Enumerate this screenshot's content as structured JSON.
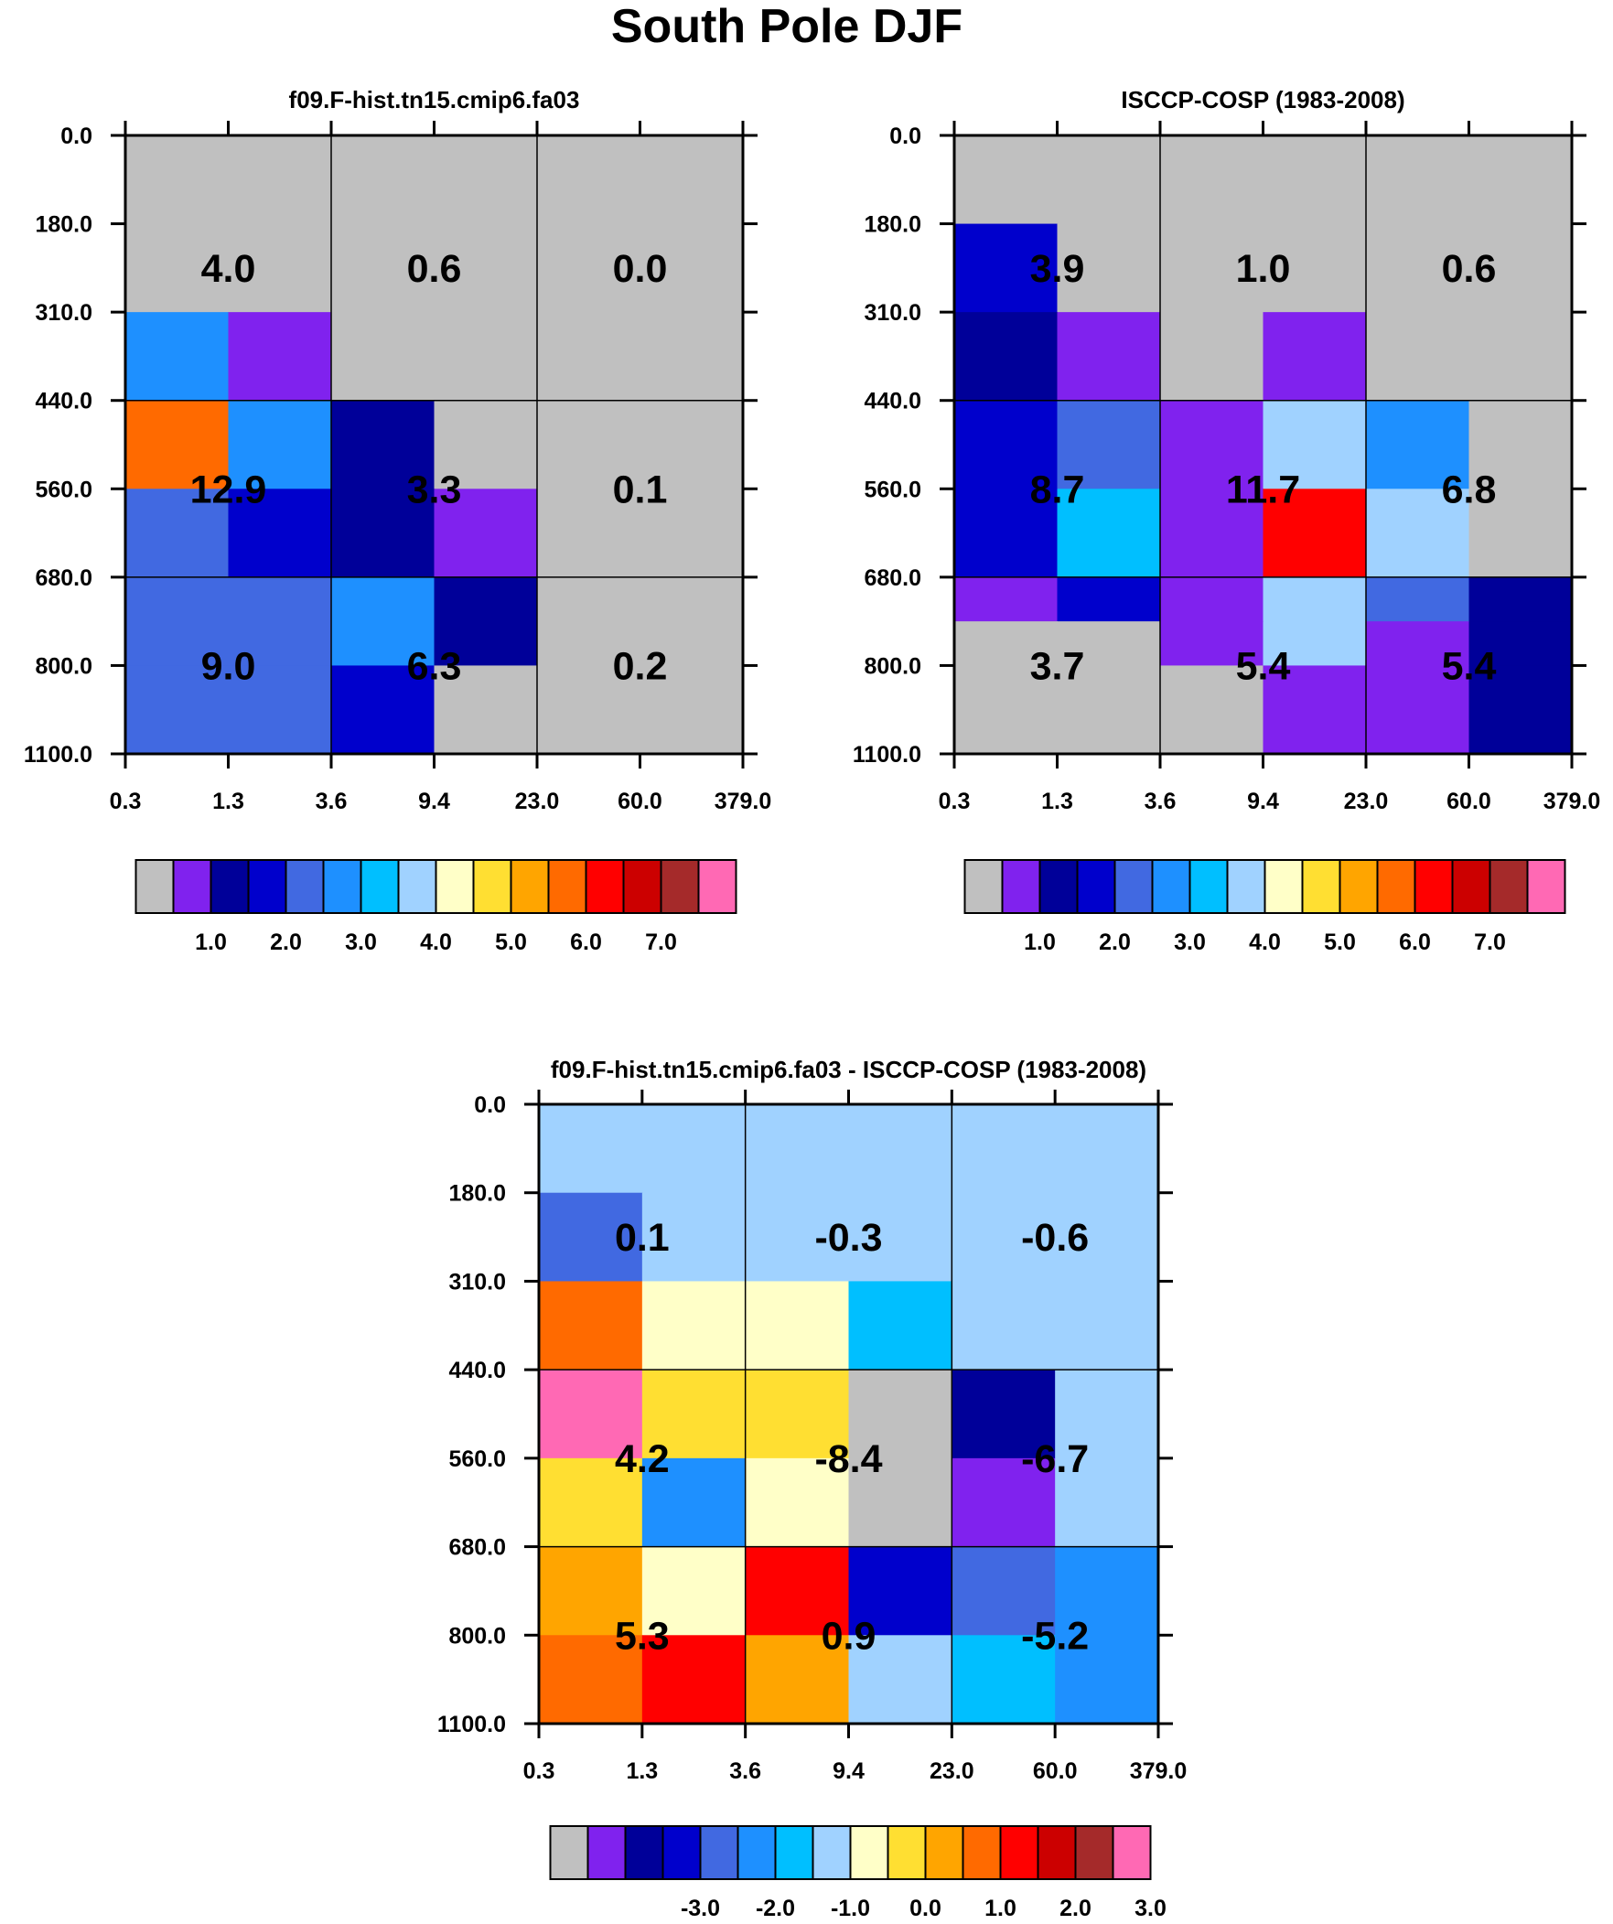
{
  "title": "South Pole DJF",
  "chart_data": [
    {
      "type": "heatmap",
      "title": "f09.F-hist.tn15.cmip6.fa03",
      "x_ticks": [
        "0.3",
        "1.3",
        "3.6",
        "9.4",
        "23.0",
        "60.0",
        "379.0"
      ],
      "y_ticks": [
        "0.0",
        "180.0",
        "310.0",
        "440.0",
        "560.0",
        "680.0",
        "800.0",
        "1100.0"
      ],
      "cells": [
        [
          0,
          0,
          0,
          0,
          0,
          0
        ],
        [
          5,
          1,
          0,
          0,
          0,
          0
        ],
        [
          11,
          5,
          2,
          0,
          0,
          0
        ],
        [
          4,
          3,
          2,
          1,
          0,
          0
        ],
        [
          4,
          4,
          5,
          2,
          0,
          0
        ],
        [
          4,
          4,
          3,
          0,
          0,
          0
        ]
      ],
      "group_values": [
        [
          "4.0",
          "0.6",
          "0.0"
        ],
        [
          "12.9",
          "3.3",
          "0.1"
        ],
        [
          "9.0",
          "6.3",
          "0.2"
        ]
      ],
      "colorbar_labels": [
        "1.0",
        "2.0",
        "3.0",
        "4.0",
        "5.0",
        "6.0",
        "7.0"
      ]
    },
    {
      "type": "heatmap",
      "title": "ISCCP-COSP (1983-2008)",
      "x_ticks": [
        "0.3",
        "1.3",
        "3.6",
        "9.4",
        "23.0",
        "60.0",
        "379.0"
      ],
      "y_ticks": [
        "0.0",
        "180.0",
        "310.0",
        "440.0",
        "560.0",
        "680.0",
        "800.0",
        "1100.0"
      ],
      "cells": [
        [
          0,
          0,
          0,
          0,
          0,
          0
        ],
        [
          3,
          0,
          0,
          0,
          0,
          0
        ],
        [
          2,
          1,
          0,
          1,
          0,
          0
        ],
        [
          3,
          4,
          1,
          7,
          5,
          0
        ],
        [
          3,
          6,
          1,
          12,
          7,
          0
        ],
        [
          1,
          3,
          1,
          7,
          4,
          2
        ],
        [
          0,
          0,
          1,
          7,
          1,
          2
        ],
        [
          0,
          0,
          0,
          1,
          1,
          2
        ]
      ],
      "cell_rows_y": [
        "0.0",
        "180.0",
        "310.0",
        "440.0",
        "560.0",
        "680.0",
        "740.0",
        "800.0",
        "1100.0"
      ],
      "group_values": [
        [
          "3.9",
          "1.0",
          "0.6"
        ],
        [
          "8.7",
          "11.7",
          "6.8"
        ],
        [
          "3.7",
          "5.4",
          "5.4"
        ]
      ],
      "colorbar_labels": [
        "1.0",
        "2.0",
        "3.0",
        "4.0",
        "5.0",
        "6.0",
        "7.0"
      ]
    },
    {
      "type": "heatmap",
      "title": "f09.F-hist.tn15.cmip6.fa03 - ISCCP-COSP (1983-2008)",
      "x_ticks": [
        "0.3",
        "1.3",
        "3.6",
        "9.4",
        "23.0",
        "60.0",
        "379.0"
      ],
      "y_ticks": [
        "0.0",
        "180.0",
        "310.0",
        "440.0",
        "560.0",
        "680.0",
        "800.0",
        "1100.0"
      ],
      "cells": [
        [
          7,
          7,
          7,
          7,
          7,
          7
        ],
        [
          4,
          7,
          7,
          7,
          7,
          7
        ],
        [
          11,
          8,
          8,
          6,
          7,
          7
        ],
        [
          15,
          9,
          9,
          0,
          2,
          7
        ],
        [
          9,
          5,
          8,
          0,
          1,
          7
        ],
        [
          10,
          8,
          12,
          3,
          4,
          5
        ],
        [
          11,
          12,
          10,
          7,
          6,
          5
        ]
      ],
      "group_values": [
        [
          "0.1",
          "-0.3",
          "-0.6"
        ],
        [
          "4.2",
          "-8.4",
          "-6.7"
        ],
        [
          "5.3",
          "0.9",
          "-5.2"
        ]
      ],
      "colorbar_labels": [
        "-3.0",
        "-2.0",
        "-1.0",
        "0.0",
        "1.0",
        "2.0",
        "3.0"
      ]
    }
  ],
  "palette": [
    "#c0c0c0",
    "#8022ee",
    "#000099",
    "#0000cc",
    "#4169e1",
    "#1e90ff",
    "#00bfff",
    "#a0d2ff",
    "#ffffc8",
    "#ffdf32",
    "#ffa500",
    "#ff6a00",
    "#ff0000",
    "#cc0000",
    "#a52a2a",
    "#ff69b4"
  ]
}
